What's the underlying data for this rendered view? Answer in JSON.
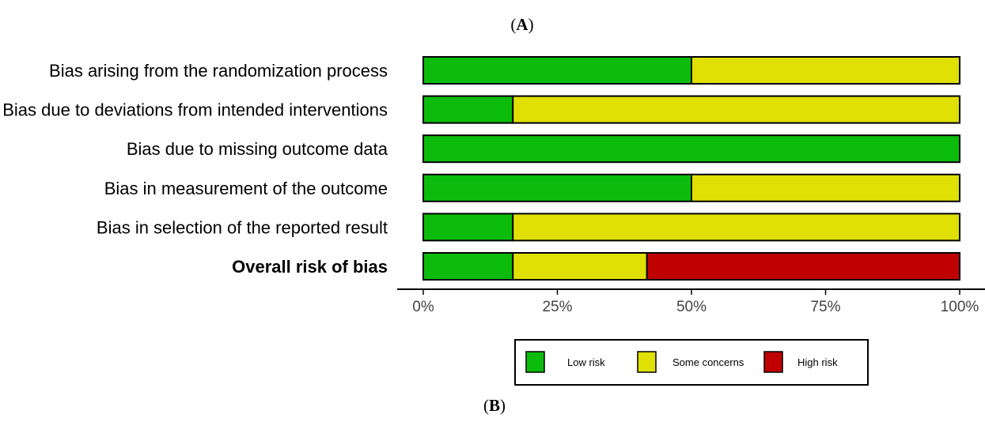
{
  "panel_labels": {
    "top": "A",
    "bottom": "B"
  },
  "colors": {
    "low": "#0cbc0c",
    "some": "#e0e005",
    "high": "#c00000"
  },
  "chart_data": {
    "type": "bar",
    "stacked": true,
    "orientation": "horizontal",
    "categories": [
      "Bias arising from the randomization process",
      "Bias due to deviations from intended interventions",
      "Bias due to missing outcome data",
      "Bias in measurement of the outcome",
      "Bias in selection of the reported result",
      "Overall risk of bias"
    ],
    "bold_categories": [
      "Overall risk of bias"
    ],
    "series": [
      {
        "name": "Low risk",
        "key": "low",
        "values": [
          50,
          16.7,
          100,
          50,
          16.7,
          16.7
        ]
      },
      {
        "name": "Some concerns",
        "key": "some",
        "values": [
          50,
          83.3,
          0,
          50,
          83.3,
          25
        ]
      },
      {
        "name": "High risk",
        "key": "high",
        "values": [
          0,
          0,
          0,
          0,
          0,
          58.3
        ]
      }
    ],
    "xlim": [
      0,
      100
    ],
    "xticks": [
      0,
      25,
      50,
      75,
      100
    ],
    "xtick_labels": [
      "0%",
      "25%",
      "50%",
      "75%",
      "100%"
    ],
    "legend_position": "bottom"
  }
}
